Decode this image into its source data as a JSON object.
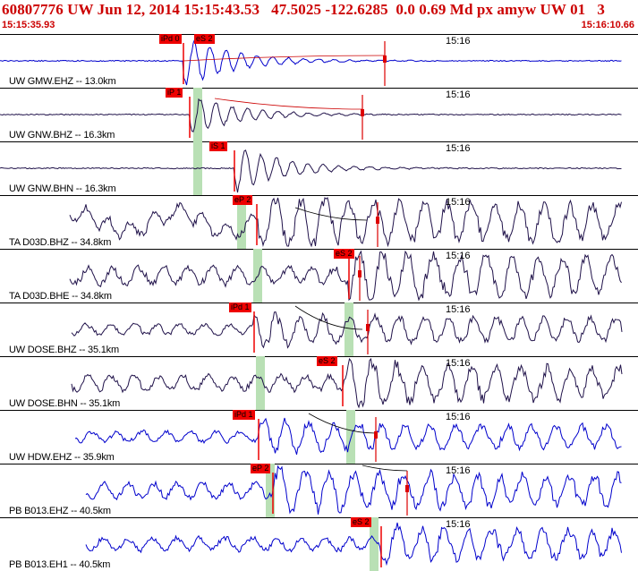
{
  "header": {
    "title": "60807776 UW Jun 12, 2014 15:15:43.53   47.5025 -122.6285  0.0 0.69 Md px amyw UW 01   3",
    "time_start": "15:15:35.93",
    "time_end": "15:16:10.66"
  },
  "colors": {
    "text_red": "#cc0000",
    "pick": "#ee0000",
    "band": "#b9e0b5",
    "blue": "#0000cc",
    "purple": "#20124a"
  },
  "traces": [
    {
      "label": "UW GMW.EHZ -- 13.0km",
      "time_mark": "15:16",
      "color": "#0000cc",
      "picks": [
        {
          "text": "iPd 0"
        },
        {
          "text": "eS 2"
        }
      ]
    },
    {
      "label": "UW GNW.BHZ -- 16.3km",
      "time_mark": "15:16",
      "color": "#20124a",
      "picks": [
        {
          "text": "iP 1"
        }
      ]
    },
    {
      "label": "UW GNW.BHN -- 16.3km",
      "time_mark": "15:16",
      "color": "#20124a",
      "picks": [
        {
          "text": "iS 1"
        }
      ]
    },
    {
      "label": "TA D03D.BHZ -- 34.8km",
      "time_mark": "15:16",
      "color": "#20124a",
      "picks": [
        {
          "text": "eP 2"
        }
      ]
    },
    {
      "label": "TA D03D.BHE -- 34.8km",
      "time_mark": "15:16",
      "color": "#20124a",
      "picks": [
        {
          "text": "eS 2"
        }
      ]
    },
    {
      "label": "UW DOSE.BHZ -- 35.1km",
      "time_mark": "15:16",
      "color": "#20124a",
      "picks": [
        {
          "text": "iPd 1"
        }
      ]
    },
    {
      "label": "UW DOSE.BHN -- 35.1km",
      "time_mark": "15:16",
      "color": "#20124a",
      "picks": [
        {
          "text": "eS 2"
        }
      ]
    },
    {
      "label": "UW HDW.EHZ -- 35.9km",
      "time_mark": "15:16",
      "color": "#0000cc",
      "picks": [
        {
          "text": "iPd 1"
        }
      ]
    },
    {
      "label": "PB B013.EHZ -- 40.5km",
      "time_mark": "15:16",
      "color": "#0000cc",
      "picks": [
        {
          "text": "eP 2"
        }
      ]
    },
    {
      "label": "PB B013.EH1 -- 40.5km",
      "time_mark": "15:16",
      "color": "#0000cc",
      "picks": [
        {
          "text": "eS 2"
        }
      ]
    }
  ]
}
